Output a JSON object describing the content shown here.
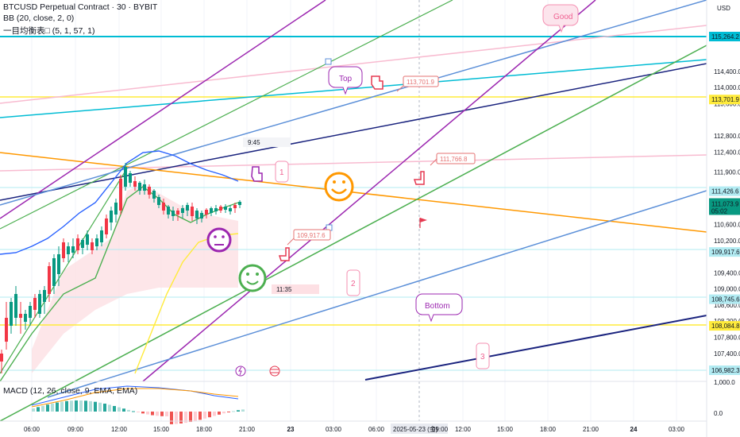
{
  "legend": {
    "symbol_line": "BTCUSD Perpetual Contract · 30 · BYBIT",
    "bb_line": "BB (20, close, 2, 0)",
    "ichimoku_line": "一目均衡表□ (5, 1, 57, 1)",
    "macd_line": "MACD (12, 26, close, 9, EMA, EMA)"
  },
  "price_axis": {
    "currency": "USD",
    "ticks": [
      {
        "label": "114,400.0",
        "value": 114400
      },
      {
        "label": "114,000.0",
        "value": 114000
      },
      {
        "label": "113,600.0",
        "value": 113600
      },
      {
        "label": "112,800.0",
        "value": 112800
      },
      {
        "label": "112,400.0",
        "value": 112400
      },
      {
        "label": "111,900.0",
        "value": 111900
      },
      {
        "label": "110,600.0",
        "value": 110600
      },
      {
        "label": "110,200.0",
        "value": 110200
      },
      {
        "label": "109,400.0",
        "value": 109400
      },
      {
        "label": "109,000.0",
        "value": 109000
      },
      {
        "label": "108,600.0",
        "value": 108600
      },
      {
        "label": "108,200.0",
        "value": 108200
      },
      {
        "label": "107,800.0",
        "value": 107800
      },
      {
        "label": "107,400.0",
        "value": 107400
      },
      {
        "label": "107,000.0",
        "value": 107000
      }
    ],
    "price_tags": [
      {
        "label": "115,264.2",
        "value": 115264.2,
        "bg": "#00bcd4",
        "fg": "#ffffff"
      },
      {
        "label": "113,701.9",
        "value": 113701.9,
        "bg": "#ffeb3b",
        "fg": "#131722"
      },
      {
        "label": "111,426.6",
        "value": 111426.6,
        "bg": "#b2ebf2",
        "fg": "#131722"
      },
      {
        "label": "109,917.6",
        "value": 109917.6,
        "bg": "#b2ebf2",
        "fg": "#131722"
      },
      {
        "label": "108,745.6",
        "value": 108745.6,
        "bg": "#b2ebf2",
        "fg": "#131722"
      },
      {
        "label": "108,084.8",
        "value": 108084.8,
        "bg": "#ffeb3b",
        "fg": "#131722"
      },
      {
        "label": "106,982.3",
        "value": 106982.3,
        "bg": "#b2ebf2",
        "fg": "#131722"
      }
    ],
    "current_price": {
      "label": "111,073.9",
      "countdown": "05:02",
      "value": 111073.9,
      "bg": "#089981"
    },
    "macd_ticks": [
      {
        "label": "1,000.0",
        "value": 1000
      },
      {
        "label": "0.0",
        "value": 0
      }
    ]
  },
  "time_axis": {
    "labels": [
      "06:00",
      "09:00",
      "12:00",
      "15:00",
      "18:00",
      "21:00",
      "23",
      "03:00",
      "06:00",
      "09:00",
      "12:00",
      "15:00",
      "18:00",
      "21:00",
      "24",
      "03:00"
    ],
    "highlight_label": "2025-05-23 (金)"
  },
  "annotations": {
    "top_note": "Top",
    "bottom_note": "Bottom",
    "good_note": "Good",
    "wave_1": "1",
    "wave_2": "2",
    "wave_3": "3",
    "time_box_1": "9:45",
    "time_box_2": "11:35",
    "price_label_1": "113,701.9",
    "price_label_2": "111,766.8",
    "price_label_3": "109,917.6"
  },
  "colors": {
    "cyan": "#00bcd4",
    "purple": "#9c27b0",
    "green": "#4caf50",
    "blue": "#5b8fd8",
    "navy": "#1a237e",
    "orange": "#ff9800",
    "pink": "#f8bbd0",
    "yellow": "#ffeb3b",
    "up": "#089981",
    "down": "#f23645"
  }
}
